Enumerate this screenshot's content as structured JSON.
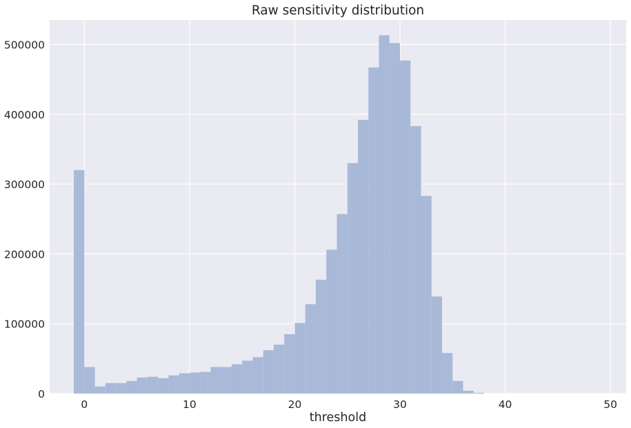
{
  "chart_data": {
    "type": "bar",
    "title": "Raw sensitivity distribution",
    "xlabel": "threshold",
    "ylabel": "",
    "xlim": [
      -3.3,
      51.5
    ],
    "ylim": [
      0,
      535000
    ],
    "xticks": [
      0,
      10,
      20,
      30,
      40,
      50
    ],
    "yticks": [
      0,
      100000,
      200000,
      300000,
      400000,
      500000
    ],
    "grid": true,
    "bar_color": "#a9b9d8",
    "background_color": "#eaeaf2",
    "grid_color": "#ffffff",
    "bin_edges": [
      -1,
      0,
      1,
      2,
      3,
      4,
      5,
      6,
      7,
      8,
      9,
      10,
      11,
      12,
      13,
      14,
      15,
      16,
      17,
      18,
      19,
      20,
      21,
      22,
      23,
      24,
      25,
      26,
      27,
      28,
      29,
      30,
      31,
      32,
      33,
      34,
      35,
      36,
      37,
      38,
      39,
      40,
      41,
      42,
      43,
      44,
      45,
      46,
      47,
      48,
      49
    ],
    "counts": [
      320000,
      38000,
      10000,
      15000,
      15000,
      18000,
      23000,
      24000,
      22000,
      26000,
      29000,
      30000,
      31000,
      38000,
      38000,
      42000,
      47000,
      52000,
      62000,
      70000,
      85000,
      101000,
      128000,
      163000,
      206000,
      257000,
      330000,
      392000,
      467000,
      513000,
      502000,
      477000,
      383000,
      283000,
      139000,
      58000,
      18000,
      4000,
      1000,
      0,
      0,
      0,
      0,
      0,
      0,
      0,
      0,
      0,
      0,
      0
    ]
  }
}
